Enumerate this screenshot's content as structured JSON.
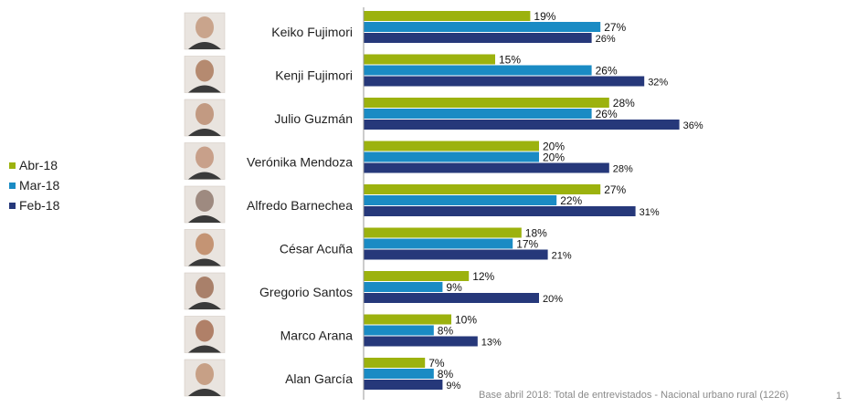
{
  "chart_data": {
    "type": "bar",
    "orientation": "horizontal",
    "categories": [
      "Keiko Fujimori",
      "Kenji Fujimori",
      "Julio Guzmán",
      "Verónika Mendoza",
      "Alfredo Barnechea",
      "César Acuña",
      "Gregorio Santos",
      "Marco Arana",
      "Alan García"
    ],
    "series": [
      {
        "name": "Abr-18",
        "color": "#9cb20e",
        "values": [
          19,
          15,
          28,
          20,
          27,
          18,
          12,
          10,
          7
        ]
      },
      {
        "name": "Mar-18",
        "color": "#1a8bc4",
        "values": [
          27,
          26,
          26,
          20,
          22,
          17,
          9,
          8,
          8
        ]
      },
      {
        "name": "Feb-18",
        "color": "#26387a",
        "values": [
          26,
          32,
          36,
          28,
          31,
          21,
          20,
          13,
          9
        ]
      }
    ],
    "value_suffix": "%",
    "xlim": [
      0,
      45
    ],
    "legend_position": "left",
    "grid": false
  },
  "footer_note": "Base abril 2018: Total de entrevistados - Nacional urbano rural (1226)",
  "page_number": "1"
}
